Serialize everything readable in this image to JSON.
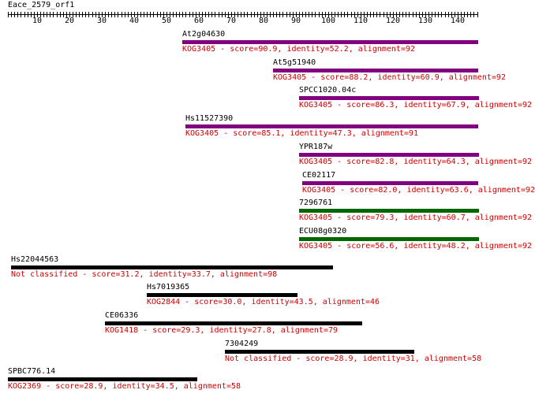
{
  "title": "Eace_2579_orf1",
  "ruler": {
    "max": 146,
    "labels": [
      10,
      20,
      30,
      40,
      50,
      60,
      70,
      80,
      90,
      100,
      110,
      120,
      130,
      140
    ]
  },
  "colors": {
    "purple": "#800080",
    "green": "#006600",
    "black": "#000000",
    "desc": "#cc0000"
  },
  "hits": [
    {
      "name": "At2g04630",
      "desc": "KOG3405 - score=90.9, identity=52.2, alignment=92",
      "start": 55,
      "end": 146,
      "color": "purple"
    },
    {
      "name": "At5g51940",
      "desc": "KOG3405 - score=88.2, identity=60.9, alignment=92",
      "start": 83,
      "end": 146,
      "color": "purple"
    },
    {
      "name": "SPCC1020.04c",
      "desc": "KOG3405 - score=86.3, identity=67.9, alignment=92",
      "start": 91,
      "end": 146,
      "color": "purple"
    },
    {
      "name": "Hs11527390",
      "desc": "KOG3405 - score=85.1, identity=47.3, alignment=91",
      "start": 56,
      "end": 146,
      "color": "purple"
    },
    {
      "name": "YPR187w",
      "desc": "KOG3405 - score=82.8, identity=64.3, alignment=92",
      "start": 91,
      "end": 146,
      "color": "purple"
    },
    {
      "name": "CE02117",
      "desc": "KOG3405 - score=82.0, identity=63.6, alignment=92",
      "start": 92,
      "end": 146,
      "color": "purple"
    },
    {
      "name": "7296761",
      "desc": "KOG3405 - score=79.3, identity=60.7, alignment=92",
      "start": 91,
      "end": 146,
      "color": "green"
    },
    {
      "name": "ECU08g0320",
      "desc": "KOG3405 - score=56.6, identity=48.2, alignment=92",
      "start": 91,
      "end": 146,
      "color": "green"
    },
    {
      "name": "Hs22044563",
      "desc": "Not classified - score=31.2, identity=33.7, alignment=98",
      "start": 2,
      "end": 101,
      "color": "black"
    },
    {
      "name": "Hs7019365",
      "desc": "KOG2844 - score=30.0, identity=43.5, alignment=46",
      "start": 44,
      "end": 90,
      "color": "black"
    },
    {
      "name": "CE06336",
      "desc": "KOG1418 - score=29.3, identity=27.8, alignment=79",
      "start": 31,
      "end": 110,
      "color": "black"
    },
    {
      "name": "7304249",
      "desc": "Not classified - score=28.9, identity=31, alignment=58",
      "start": 68,
      "end": 126,
      "color": "black"
    },
    {
      "name": "SPBC776.14",
      "desc": "KOG2369 - score=28.9, identity=34.5, alignment=58",
      "start": 1,
      "end": 59,
      "color": "black"
    }
  ]
}
